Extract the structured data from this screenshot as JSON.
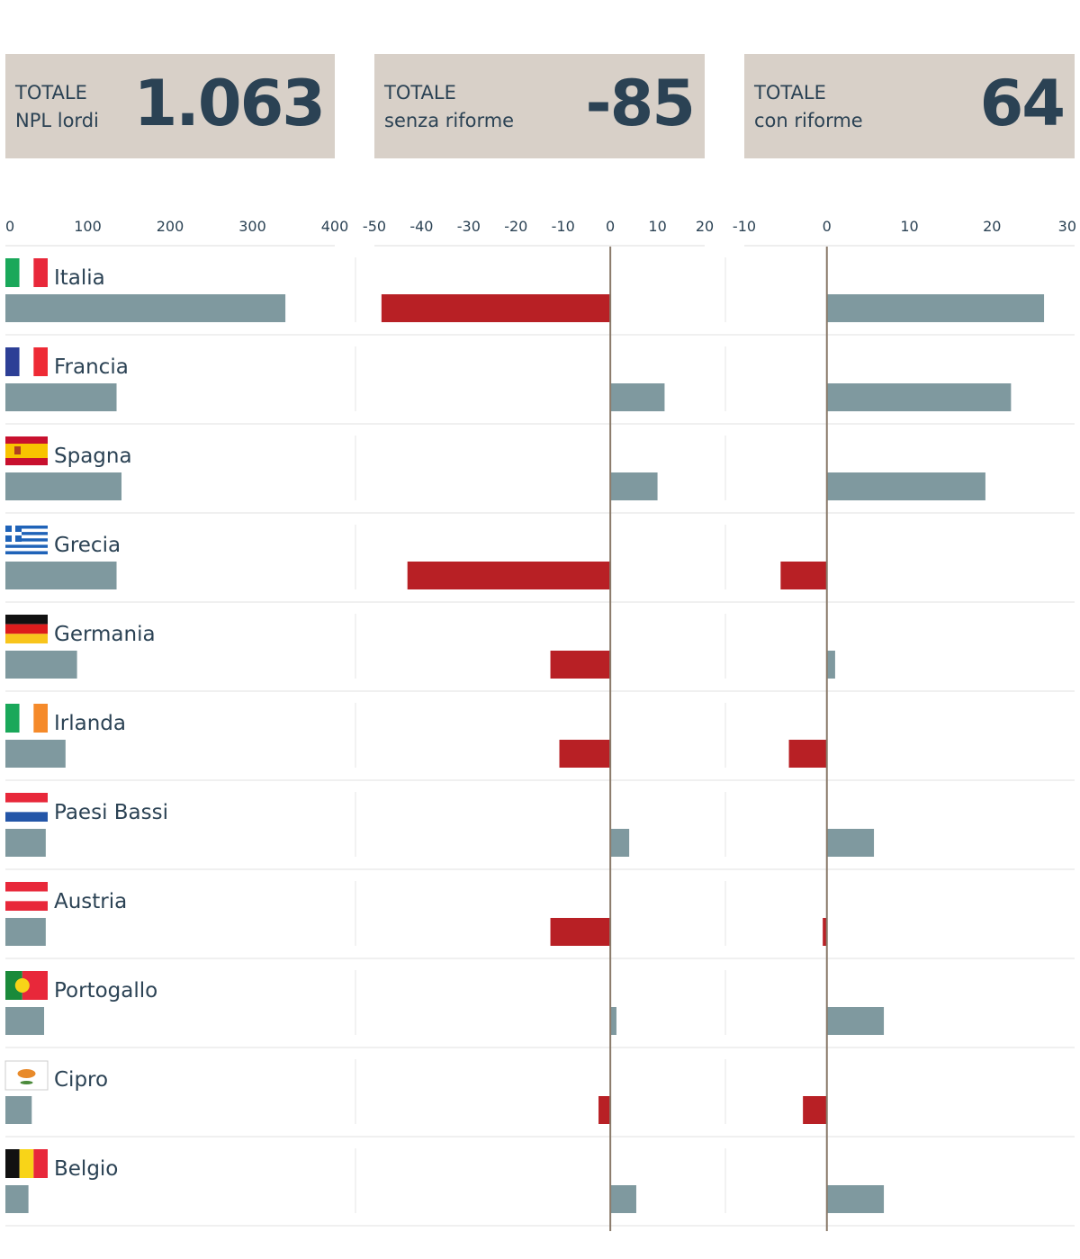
{
  "header": {
    "boxes": [
      {
        "label": "TOTALE\nNPL lordi",
        "value": "1.063"
      },
      {
        "label": "TOTALE\nsenza riforme",
        "value": "-85"
      },
      {
        "label": "TOTALE\ncon riforme",
        "value": "64"
      }
    ]
  },
  "colors": {
    "grey_bar": "#7f999f",
    "red_bar": "#b82025",
    "text": "#2b4254",
    "header_bg": "#d8d0c8",
    "zero_line": "#8a7a6a"
  },
  "chart_data": [
    {
      "type": "bar",
      "orientation": "horizontal",
      "header_label": "TOTALE NPL lordi",
      "ticks": [
        0,
        100,
        200,
        300,
        400
      ],
      "xlim": [
        0,
        400
      ],
      "categories": [
        "Italia",
        "Francia",
        "Spagna",
        "Grecia",
        "Germania",
        "Irlanda",
        "Paesi Bassi",
        "Austria",
        "Portogallo",
        "Cipro",
        "Belgio"
      ],
      "values": [
        340,
        135,
        141,
        135,
        87,
        73,
        49,
        49,
        47,
        32,
        28
      ]
    },
    {
      "type": "bar",
      "orientation": "horizontal",
      "header_label": "TOTALE senza riforme",
      "ticks": [
        -50,
        -40,
        -30,
        -20,
        -10,
        0,
        10,
        20
      ],
      "xlim": [
        -50,
        20
      ],
      "categories": [
        "Italia",
        "Francia",
        "Spagna",
        "Grecia",
        "Germania",
        "Irlanda",
        "Paesi Bassi",
        "Austria",
        "Portogallo",
        "Cipro",
        "Belgio"
      ],
      "values": [
        -48.5,
        11.5,
        10,
        -43,
        -12.7,
        -10.8,
        4,
        -12.7,
        1.3,
        -2.5,
        5.5
      ]
    },
    {
      "type": "bar",
      "orientation": "horizontal",
      "header_label": "TOTALE con riforme",
      "ticks": [
        -10,
        0,
        10,
        20,
        30
      ],
      "xlim": [
        -10,
        30
      ],
      "categories": [
        "Italia",
        "Francia",
        "Spagna",
        "Grecia",
        "Germania",
        "Irlanda",
        "Paesi Bassi",
        "Austria",
        "Portogallo",
        "Cipro",
        "Belgio"
      ],
      "values": [
        26.3,
        22.3,
        19.2,
        -5.6,
        1,
        -4.6,
        5.7,
        -0.5,
        6.9,
        -2.9,
        6.9
      ]
    }
  ]
}
